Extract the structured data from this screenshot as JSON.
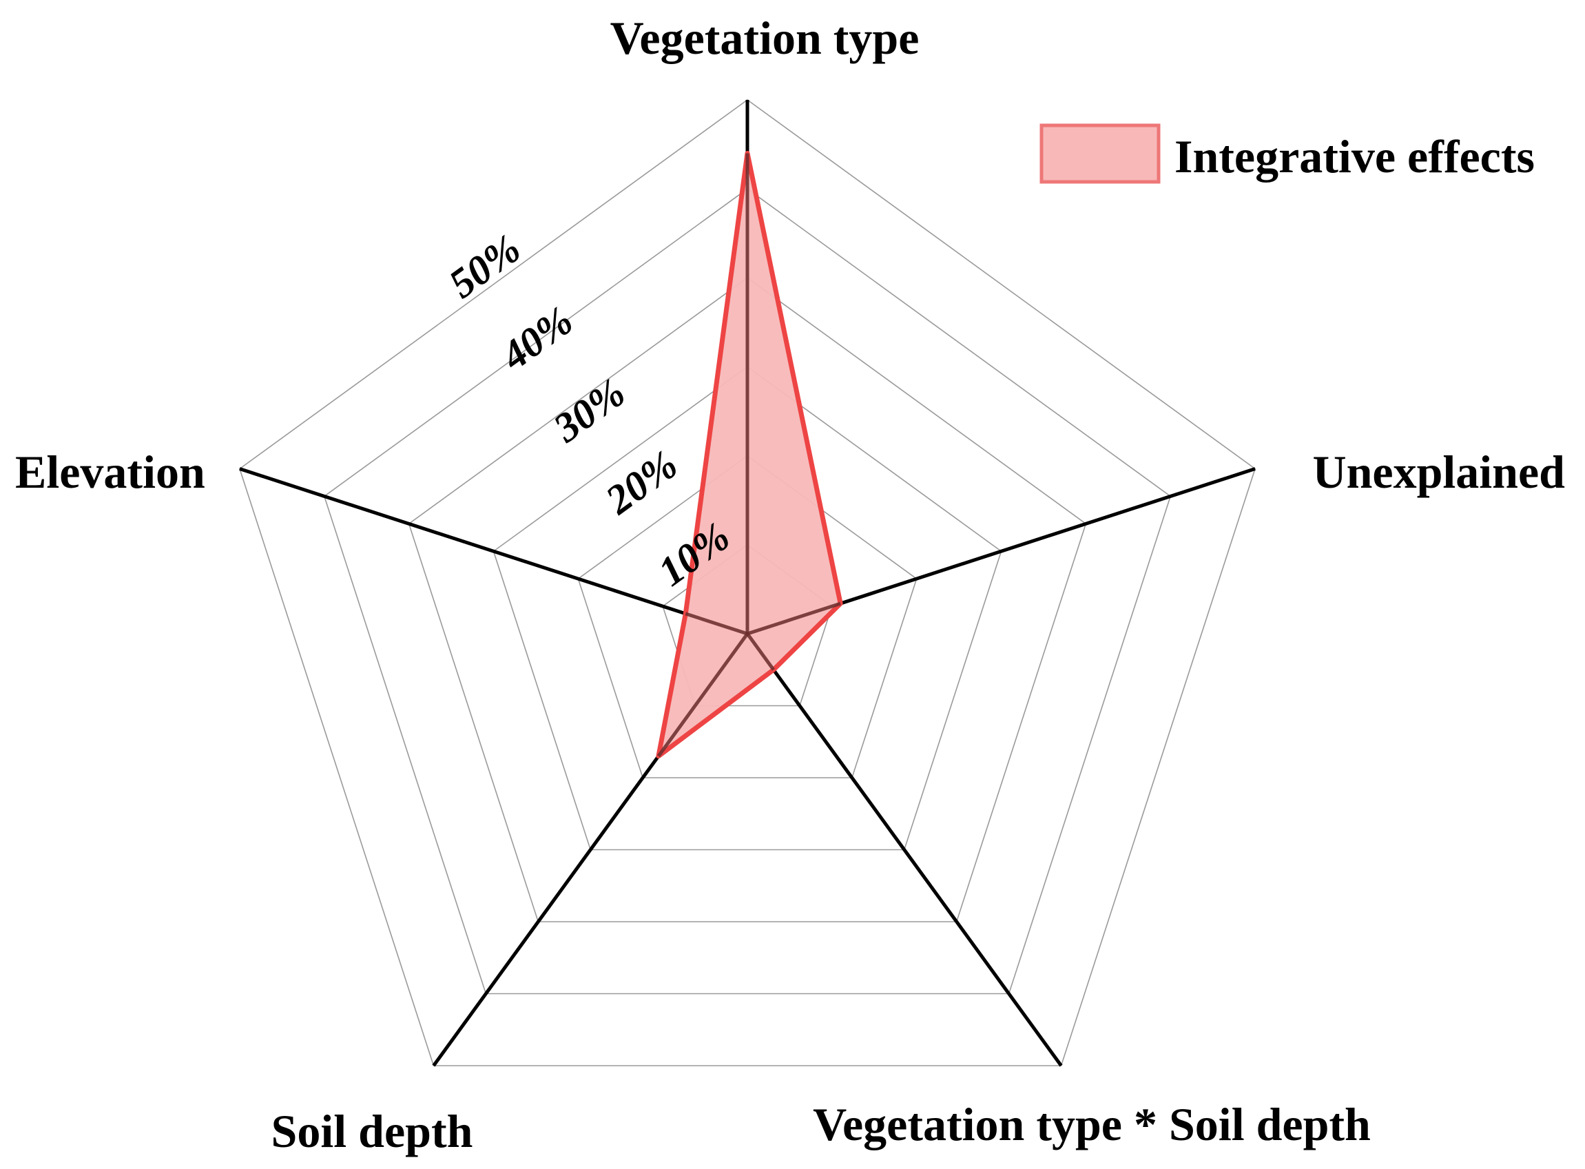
{
  "chart_data": {
    "type": "radar",
    "categories": [
      "Vegetation type",
      "Unexplained",
      "Vegetation type * Soil depth",
      "Soil depth",
      "Elevation"
    ],
    "series": [
      {
        "name": "Integrative effects",
        "values": [
          54.0,
          11.0,
          5.0,
          17.0,
          7.3
        ],
        "fill_color": "#F8B8B8",
        "line_color": "#EE4444"
      }
    ],
    "rlim": [
      0,
      60
    ],
    "tick_labels": [
      "10%",
      "20%",
      "30%",
      "40%",
      "50%"
    ],
    "tick_values": [
      10,
      20,
      30,
      40,
      50
    ],
    "grid": true,
    "legend": "top-right"
  }
}
